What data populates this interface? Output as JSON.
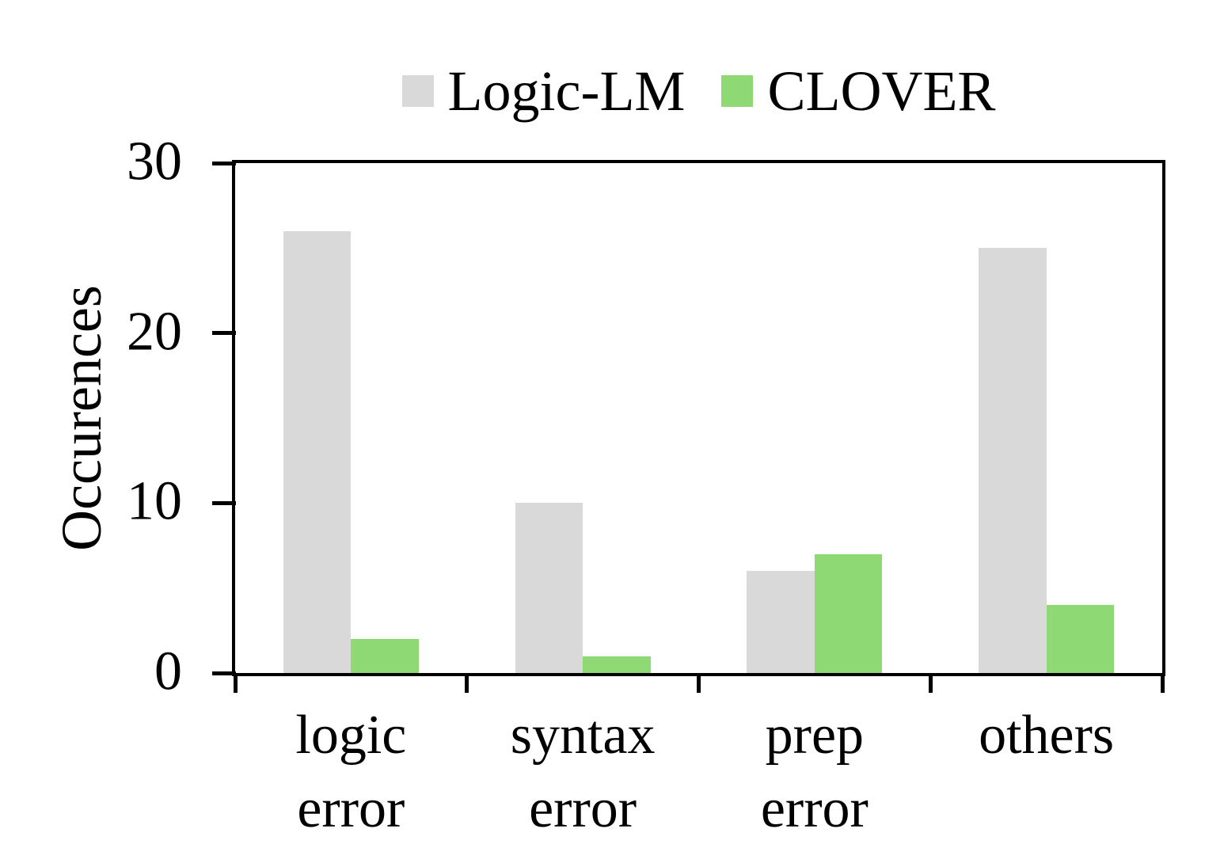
{
  "chart_data": {
    "type": "bar",
    "title": "",
    "ylabel": "Occurences",
    "xlabel": "",
    "categories": [
      "logic\nerror",
      "syntax\nerror",
      "prep\nerror",
      "others"
    ],
    "series": [
      {
        "name": "Logic-LM",
        "color": "#d9d9d9",
        "values": [
          26,
          10,
          6,
          25
        ]
      },
      {
        "name": "CLOVER",
        "color": "#8ed973",
        "values": [
          2,
          1,
          7,
          4
        ]
      }
    ],
    "ylim": [
      0,
      30
    ],
    "yticks": [
      0,
      10,
      20,
      30
    ],
    "grid": false,
    "legend_position": "top-center",
    "axis_color": "#000000",
    "plot_background": "#ffffff"
  }
}
